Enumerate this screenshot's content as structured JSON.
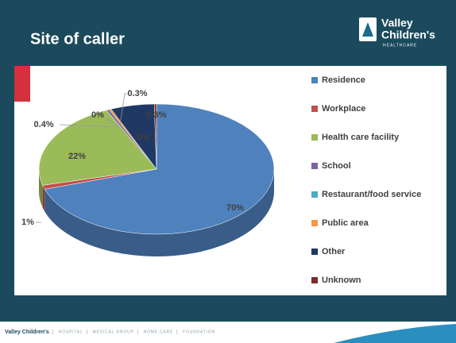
{
  "chart_data": {
    "type": "pie",
    "title": "Site of caller",
    "categories": [
      "Residence",
      "Workplace",
      "Health care facility",
      "School",
      "Restaurant/food service",
      "Public area",
      "Other",
      "Unknown"
    ],
    "values": [
      70,
      1,
      22,
      0.4,
      0,
      0.3,
      6,
      0.3
    ],
    "value_labels": [
      "70%",
      "1%",
      "22%",
      "0.4%",
      "0%",
      "0.3%",
      "6%",
      "0.3%"
    ],
    "colors": [
      "#4f81bd",
      "#c0504d",
      "#9bbb59",
      "#8064a2",
      "#4bacc6",
      "#f79646",
      "#1f3864",
      "#7b2c2c"
    ],
    "legend": "right"
  },
  "slide": {
    "logo": [
      "Valley",
      "Children's",
      "HEALTHCARE"
    ],
    "footer": [
      "Valley Children's",
      "HOSPITAL",
      "MEDICAL GROUP",
      "HOME CARE",
      "FOUNDATION"
    ]
  }
}
